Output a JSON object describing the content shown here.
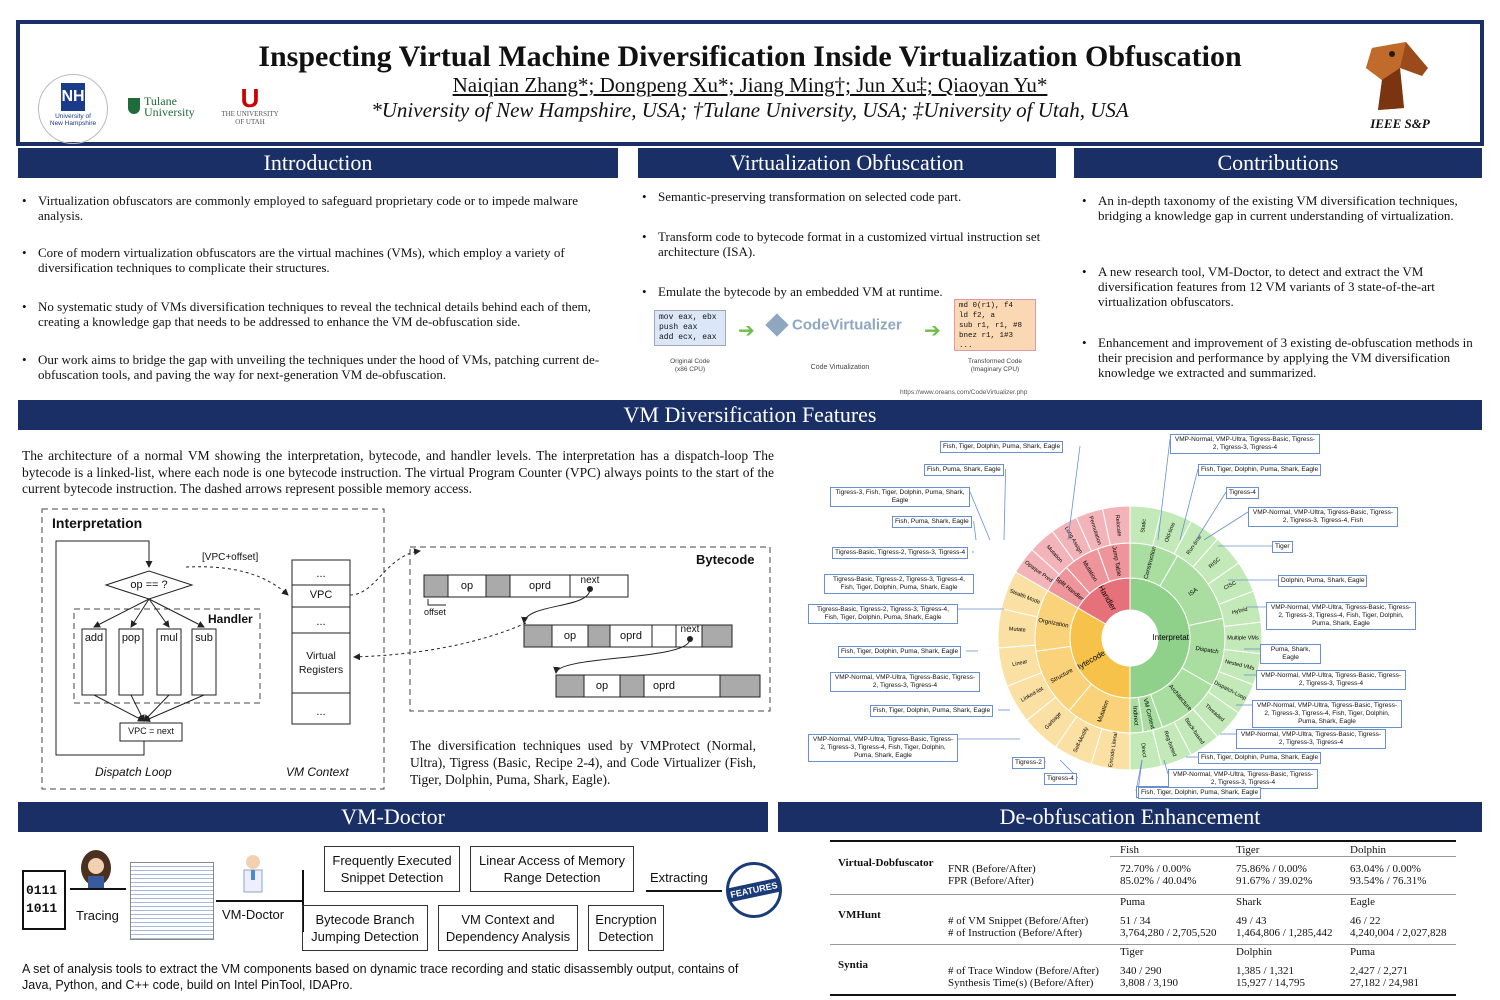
{
  "header": {
    "title": "Inspecting Virtual Machine Diversification Inside Virtualization Obfuscation",
    "authors": "Naiqian Zhang*; Dongpeng Xu*; Jiang Ming†; Jun Xu‡; Qiaoyan Yu*",
    "affiliations": "*University of New Hampshire, USA; †Tulane University, USA; ‡University of Utah, USA",
    "logo_unh": "University of New Hampshire",
    "logo_tulane": "Tulane University",
    "logo_utah": "THE UNIVERSITY OF UTAH",
    "logo_ieee": "IEEE S&P",
    "colors": {
      "banner": "#1a2f66"
    }
  },
  "intro": {
    "title": "Introduction",
    "bullets": [
      "Virtualization obfuscators are commonly employed to safeguard proprietary code or to impede malware analysis.",
      "Core of modern virtualization obfuscators are the virtual machines (VMs), which employ a variety of diversification techniques to complicate their structures.",
      "No systematic study of VMs diversification techniques to reveal the technical details behind each of them, creating a knowledge gap that needs to be addressed to enhance the VM de-obfuscation side.",
      "Our work aims to bridge the gap with unveiling the techniques under the hood of VMs, patching current de-obfuscation tools, and paving the way for next-generation VM de-obfuscation."
    ]
  },
  "vo": {
    "title": "Virtualization Obfuscation",
    "bullets": [
      "Semantic-preserving transformation on selected code part.",
      "Transform code to bytecode format in a customized virtual instruction set architecture (ISA).",
      "Emulate the bytecode by an embedded VM at runtime."
    ],
    "orig_code": [
      "mov eax, ebx",
      "push eax",
      "add ecx, eax"
    ],
    "orig_label": "Original Code",
    "orig_sub": "(x86 CPU)",
    "cv_logo": "CodeVirtualizer",
    "cv_label": "Code Virtualization",
    "trans_code": [
      "md 0(r1), f4",
      "ld f2, a",
      "sub r1, r1, #8",
      "bnez r1, 1#3",
      "..."
    ],
    "trans_label": "Transformed Code",
    "trans_sub": "(Imaginary CPU)",
    "url": "https://www.oreans.com/CodeVirtualizer.php"
  },
  "contrib": {
    "title": "Contributions",
    "bullets": [
      "An in-depth taxonomy of the existing VM diversification techniques, bridging a knowledge gap in current understanding of virtualization.",
      "A new research tool, VM-Doctor, to detect and extract the VM diversification features from 12 VM variants of 3 state-of-the-art virtualization obfuscators.",
      "Enhancement and improvement of 3 existing de-obfuscation methods in their precision and performance by applying the VM diversification knowledge we extracted and summarized."
    ]
  },
  "vmdf": {
    "title": "VM Diversification Features",
    "desc": "The architecture of a normal VM showing the interpretation, bytecode, and handler levels. The interpretation has a dispatch-loop The bytecode is a linked-list, where each node is one bytecode instruction. The virtual Program Counter (VPC) always points to the start of the current bytecode instruction. The dashed arrows represent possible memory access.",
    "diag": {
      "interpretation": "Interpretation",
      "handler": "Handler",
      "vpc_offset": "[VPC+offset]",
      "cond": "op == ?",
      "handlers": [
        "add",
        "pop",
        "mul",
        "sub"
      ],
      "vpc_next": "VPC = next",
      "dispatch_loop": "Dispatch Loop",
      "vm_context": "VM Context",
      "ctx": [
        "...",
        "VPC",
        "...",
        "Virtual Registers",
        "..."
      ],
      "bytecode": "Bytecode",
      "op": "op",
      "oprd": "oprd",
      "next": "next",
      "offset": "offset"
    },
    "techniques": "The diversification techniques used by VMProtect (Normal, Ultra), Tigress (Basic, Recipe 2-4), and Code Virtualizer (Fish, Tiger, Dolphin, Puma, Shark, Eagle)."
  },
  "sun": {
    "inner": [
      "Interpretation",
      "Bytecode",
      "Handler"
    ],
    "interp": [
      "Construction",
      "ISA",
      "Dispatch",
      "Architecture",
      "VM Context",
      "Indirect"
    ],
    "interp_outer": [
      "Static",
      "Old-time",
      "Run-time",
      "RISC",
      "CISC",
      "Hybrid",
      "Multiple VMs",
      "Nested VMs",
      "Dispatch-Loop",
      "Threaded",
      "Stack-based",
      "Reg-based",
      "Direct"
    ],
    "byte_mid": [
      "Orgnization",
      "Structure",
      "Mutation"
    ],
    "byte_outer": [
      "Stealth Mode",
      "Mutate",
      "Linear",
      "Linked-list",
      "Garbage",
      "Self-Modify",
      "Encode Literal"
    ],
    "hand_mid": [
      "Split Handler",
      "Mutation",
      "Jump Table"
    ],
    "hand_outer": [
      "Opaque Pred",
      "Mutation",
      "Long Assign",
      "Permutation",
      "Relocate"
    ],
    "labels": [
      "Fish, Tiger, Dolphin, Puma, Shark, Eagle",
      "Fish, Puma, Shark, Eagle",
      "Tigress-3, Fish, Tiger, Dolphin, Puma, Shark, Eagle",
      "Fish, Puma, Shark, Eagle",
      "Tigress-Basic, Tigress-2, Tigress-3, Tigress-4",
      "Tigress-Basic, Tigress-2, Tigress-3, Tigress-4, Fish, Tiger, Dolphin, Puma, Shark, Eagle",
      "Tigress-Basic, Tigress-2, Tigress-3, Tigress-4, Fish, Tiger, Dolphin, Puma, Shark, Eagle",
      "Fish, Tiger, Dolphin, Puma, Shark, Eagle",
      "VMP-Normal, VMP-Ultra, Tigress-Basic, Tigress-2, Tigress-3, Tigress-4",
      "Fish, Tiger, Dolphin, Puma, Shark, Eagle",
      "VMP-Normal, VMP-Ultra, Tigress-Basic, Tigress-2, Tigress-3, Tigress-4, Fish, Tiger, Dolphin, Puma, Shark, Eagle",
      "Tigress-2",
      "Tigress-4",
      "Fish, Tiger, Dolphin, Puma, Shark, Eagle",
      "VMP-Normal, VMP-Ultra, Tigress-Basic, Tigress-2, Tigress-3, Tigress-4",
      "Fish, Tiger, Dolphin, Puma, Shark, Eagle",
      "Tigress-4",
      "VMP-Normal, VMP-Ultra, Tigress-Basic, Tigress-2, Tigress-3, Tigress-4, Fish",
      "Tiger",
      "Dolphin, Puma, Shark, Eagle",
      "VMP-Normal, VMP-Ultra, Tigress-Basic, Tigress-2, Tigress-3, Tigress-4, Fish, Tiger, Dolphin, Puma, Shark, Eagle",
      "Puma, Shark, Eagle",
      "VMP-Normal, VMP-Ultra, Tigress-Basic, Tigress-2, Tigress-3, Tigress-4",
      "VMP-Normal, VMP-Ultra, Tigress-Basic, Tigress-2, Tigress-3, Tigress-4, Fish, Tiger, Dolphin, Puma, Shark, Eagle",
      "VMP-Normal, VMP-Ultra, Tigress-Basic, Tigress-2, Tigress-3, Tigress-4",
      "Fish, Tiger, Dolphin, Puma, Shark, Eagle",
      "VMP-Normal, VMP-Ultra, Tigress-Basic, Tigress-2, Tigress-3, Tigress-4",
      "Fish, Tiger, Dolphin, Puma, Shark, Eagle"
    ]
  },
  "vmd": {
    "title": "VM-Doctor",
    "binary": [
      "0111",
      "1011"
    ],
    "tracing": "Tracing",
    "vmdoctor": "VM-Doctor",
    "extracting": "Extracting",
    "features": "FEATURES",
    "boxes": [
      "Frequently Executed Snippet Detection",
      "Linear Access of Memory Range Detection",
      "Bytecode Branch Jumping Detection",
      "VM Context and Dependency Analysis",
      "Encryption Detection"
    ],
    "desc": "A set of analysis tools to extract the VM components based on dynamic trace recording and static disassembly output, contains of Java, Python, and C++ code, build on Intel PinTool, IDAPro."
  },
  "deob": {
    "title": "De-obfuscation Enhancement",
    "groups": [
      {
        "name": "Virtual-Dobfuscator",
        "cols": [
          "Fish",
          "Tiger",
          "Dolphin"
        ],
        "rows": [
          {
            "m": "FNR (Before/After)",
            "v": [
              "72.70% / 0.00%",
              "75.86% / 0.00%",
              "63.04% / 0.00%"
            ]
          },
          {
            "m": "FPR (Before/After)",
            "v": [
              "85.02% / 40.04%",
              "91.67% / 39.02%",
              "93.54% / 76.31%"
            ]
          }
        ]
      },
      {
        "name": "VMHunt",
        "cols": [
          "Puma",
          "Shark",
          "Eagle"
        ],
        "rows": [
          {
            "m": "# of VM Snippet (Before/After)",
            "v": [
              "51 / 34",
              "49 / 43",
              "46 / 22"
            ]
          },
          {
            "m": "# of Instruction (Before/After)",
            "v": [
              "3,764,280 / 2,705,520",
              "1,464,806 / 1,285,442",
              "4,240,004 / 2,027,828"
            ]
          }
        ]
      },
      {
        "name": "Syntia",
        "cols": [
          "Tiger",
          "Dolphin",
          "Puma"
        ],
        "rows": [
          {
            "m": "# of Trace Window (Before/After)",
            "v": [
              "340 / 290",
              "1,385 / 1,321",
              "2,427 / 2,271"
            ]
          },
          {
            "m": "Synthesis Time(s) (Before/After)",
            "v": [
              "3,808 / 3,190",
              "15,927 / 14,795",
              "27,182 / 24,981"
            ]
          }
        ]
      }
    ]
  }
}
